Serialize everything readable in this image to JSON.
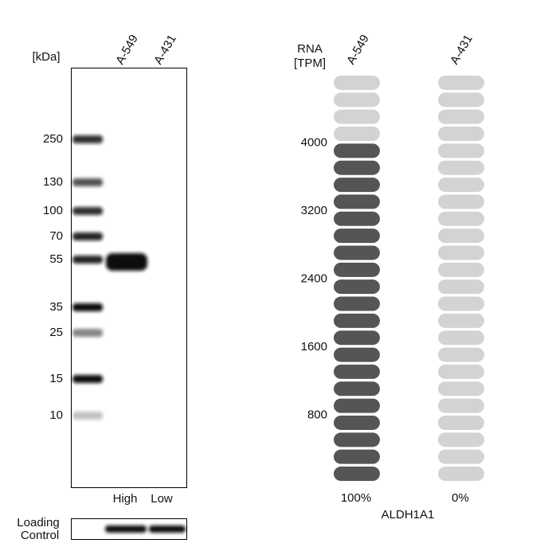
{
  "blot": {
    "unit_label": "[kDa]",
    "lanes": [
      "A-549",
      "A-431"
    ],
    "markers": [
      "250",
      "130",
      "100",
      "70",
      "55",
      "35",
      "25",
      "15",
      "10"
    ],
    "levels": [
      "High",
      "Low"
    ],
    "loading_control": [
      "Loading",
      "Control"
    ]
  },
  "rna": {
    "axis_label": [
      "RNA",
      "[TPM]"
    ],
    "lanes": [
      "A-549",
      "A-431"
    ],
    "values": [
      4000,
      0
    ],
    "value_labels": [
      "100%",
      "0%"
    ],
    "ticks": [
      800,
      1600,
      2400,
      3200,
      4000
    ],
    "gene": "ALDH1A1"
  }
}
